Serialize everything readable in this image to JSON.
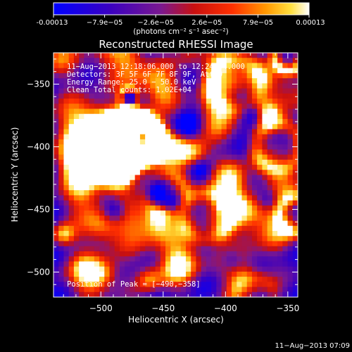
{
  "chart_data": {
    "type": "heatmap",
    "title": "Reconstructed RHESSI Image",
    "xlabel": "Heliocentric X (arcsec)",
    "ylabel": "Heliocentric Y (arcsec)",
    "xlim": [
      -538,
      -342
    ],
    "ylim": [
      -520,
      -325
    ],
    "x_ticks": [
      -500,
      -450,
      -400,
      -350
    ],
    "y_ticks": [
      -350,
      -400,
      -450,
      -500
    ],
    "x_tick_labels": [
      "−500",
      "−450",
      "−400",
      "−350"
    ],
    "y_tick_labels": [
      "−350",
      "−400",
      "−450",
      "−500"
    ],
    "colorbar": {
      "min": -0.00013,
      "max": 0.00013,
      "tick_labels": [
        "-0.00013",
        "−7.9e−05",
        "−2.6e−05",
        "2.6e−05",
        "7.9e−05",
        "0.00013"
      ],
      "units": "(photons cm⁻² s⁻¹ asec⁻²)"
    },
    "annotations": [
      "11−Aug−2013 12:18:06.000 to 12:24:04.000",
      "Detectors: 3F 5F 6F 7F 8F 9F, Att=0",
      "Energy Range: 25.0 − 50.0 keV",
      "Clean     Total counts: 1.02E+04"
    ],
    "peak_label": "Position of Peak = [−490,−358]",
    "peak_position": [
      -490,
      -358
    ],
    "footer_timestamp": "11−Aug−2013 07:09",
    "grid": false,
    "colormap": "blue-purple-red-orange-yellow-white (hot with negative blue)"
  }
}
